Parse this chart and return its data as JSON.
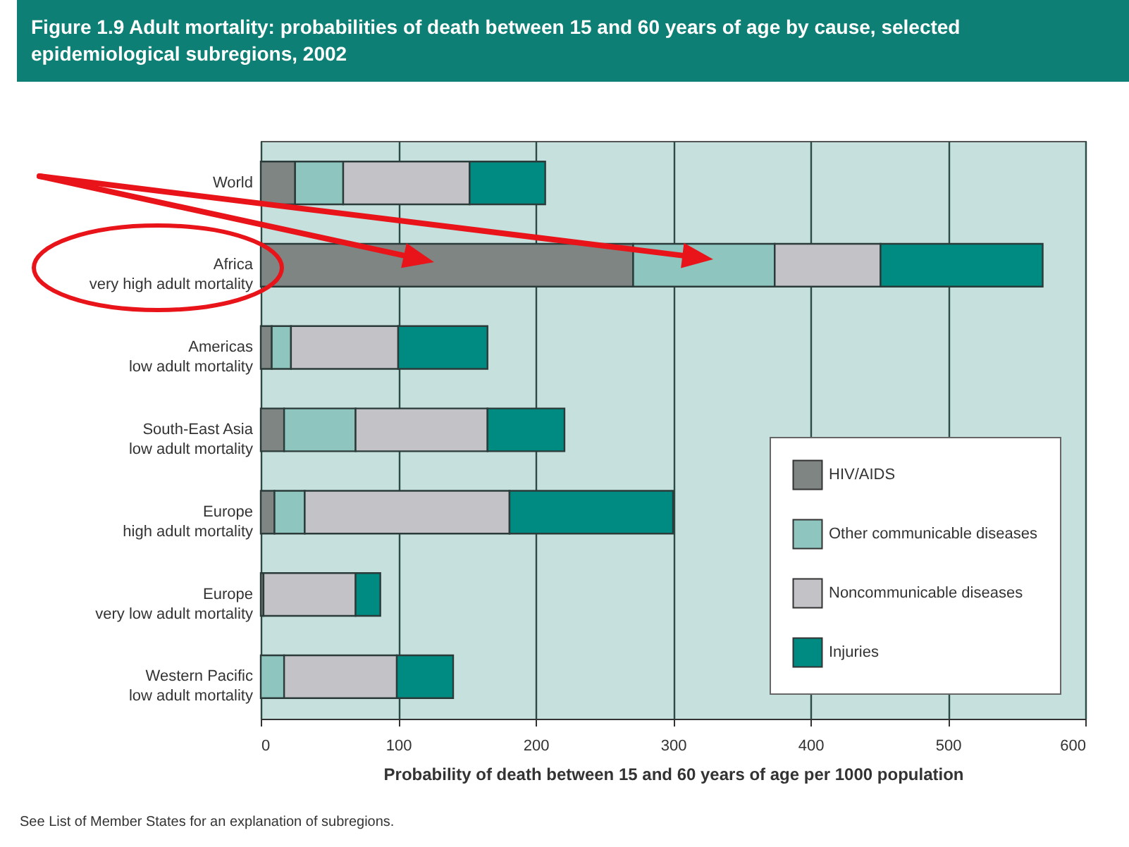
{
  "chart_data": {
    "type": "bar",
    "orientation": "horizontal",
    "stacked": true,
    "title": "Figure 1.9  Adult mortality: probabilities of death between 15 and 60 years of age by cause, selected epidemiological subregions, 2002",
    "xlabel": "Probability of death between 15 and 60 years of age per 1000 population",
    "categories": [
      "World",
      "Africa\nvery high adult mortality",
      "Americas\nlow adult mortality",
      "South-East Asia\nlow adult mortality",
      "Europe\nhigh adult mortality",
      "Europe\nvery low adult mortality",
      "Western Pacific\nlow adult mortality"
    ],
    "series": [
      {
        "name": "HIV/AIDS",
        "color": "#7f8583",
        "values": [
          25,
          271,
          8,
          17,
          10,
          2,
          null
        ]
      },
      {
        "name": "Other communicable diseases",
        "color": "#8fc5bf",
        "values": [
          35,
          103,
          14,
          52,
          22,
          null,
          17
        ]
      },
      {
        "name": "Noncommunicable diseases",
        "color": "#c3c3c7",
        "values": [
          92,
          77,
          78,
          96,
          149,
          67,
          82
        ]
      },
      {
        "name": "Injuries",
        "color": "#008b82",
        "values": [
          55,
          118,
          65,
          56,
          119,
          18,
          41
        ]
      }
    ],
    "xlim": [
      0,
      600
    ],
    "xticks": [
      0,
      100,
      200,
      300,
      400,
      500,
      600
    ],
    "grid": "x",
    "legend": "bottom right",
    "annotations": [
      "See List of Member States for an explanation of subregions."
    ]
  }
}
